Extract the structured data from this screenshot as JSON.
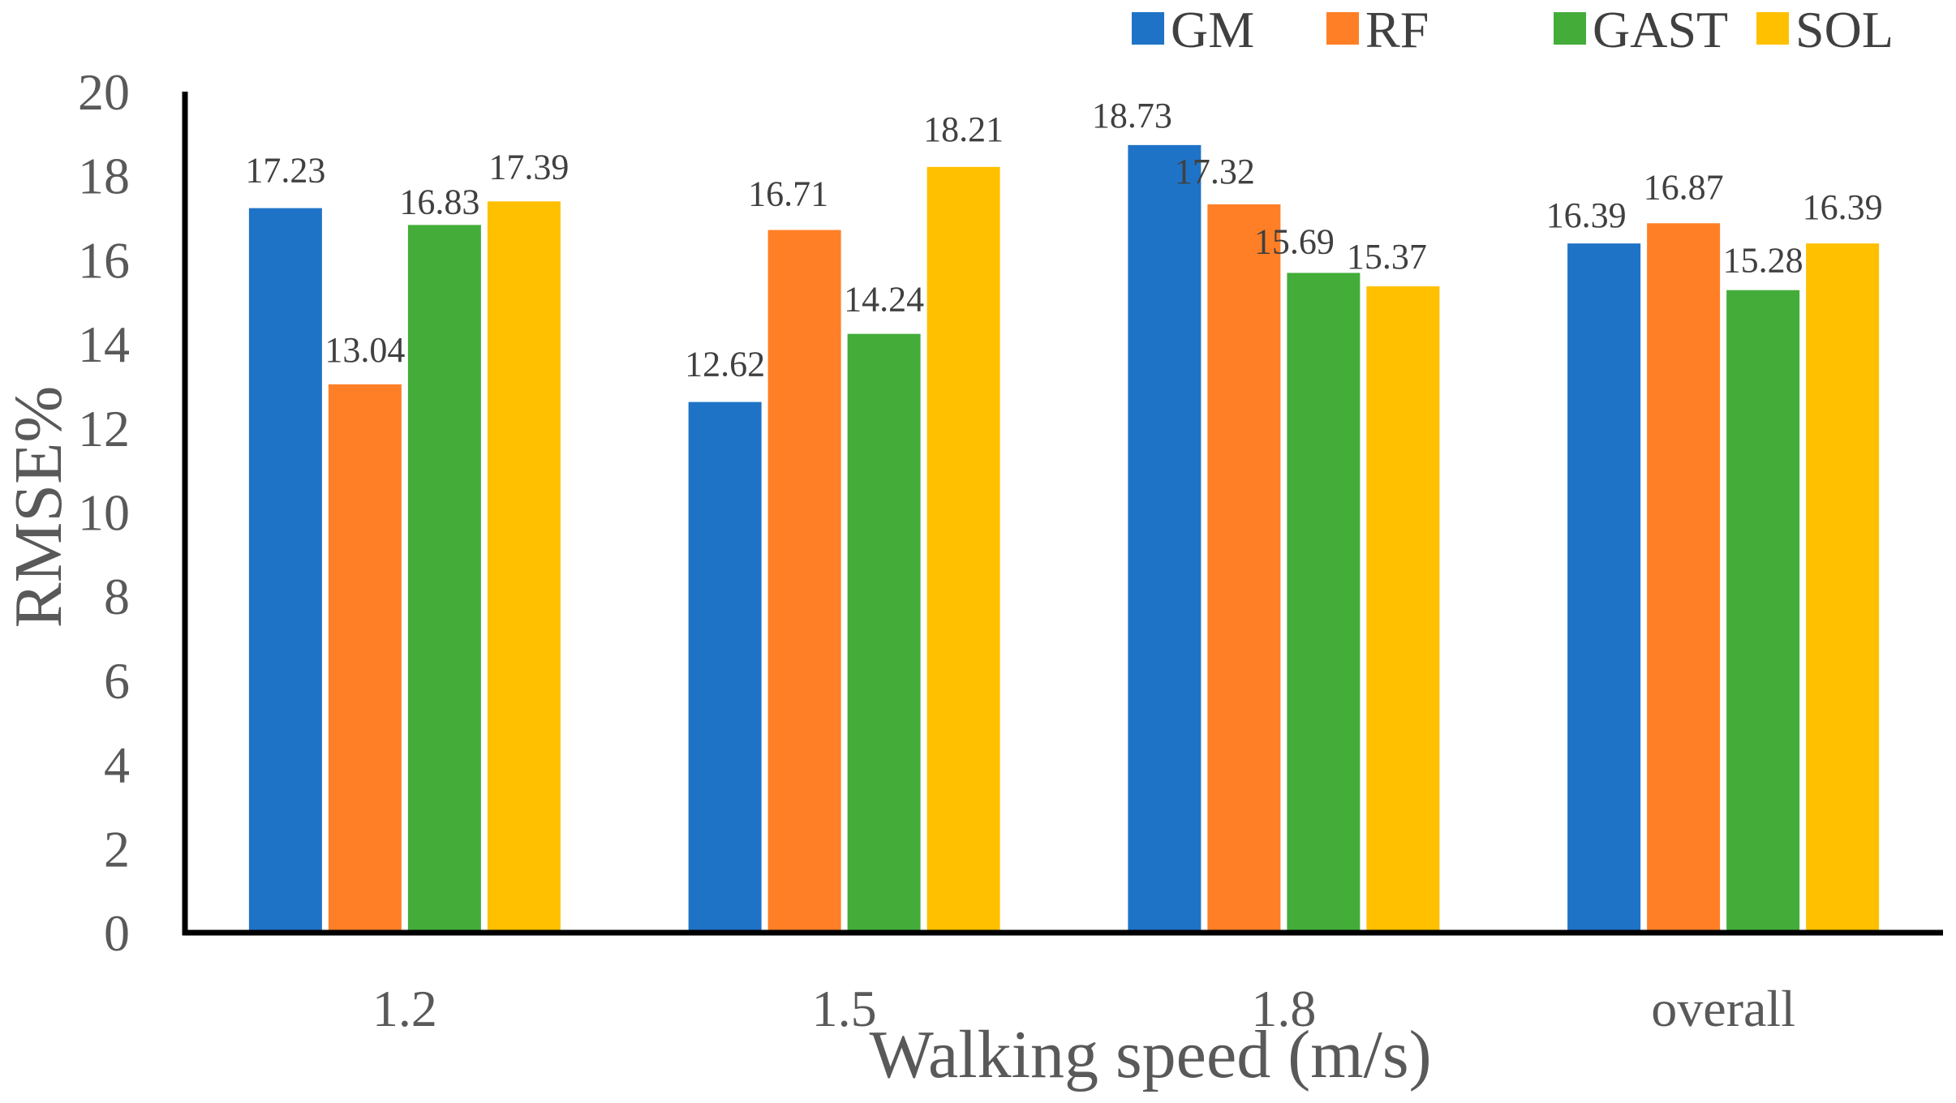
{
  "chart_data": {
    "type": "bar",
    "title": "",
    "xlabel": "Walking speed (m/s)",
    "ylabel": "RMSE%",
    "ylim": [
      0,
      20
    ],
    "yticks": [
      0,
      2,
      4,
      6,
      8,
      10,
      12,
      14,
      16,
      18,
      20
    ],
    "grid": false,
    "legend_position": "top-right",
    "categories": [
      "1.2",
      "1.5",
      "1.8",
      "overall"
    ],
    "series": [
      {
        "name": "GM",
        "color": "#1F73C6",
        "values": [
          17.23,
          12.62,
          18.73,
          16.39
        ],
        "labels": [
          "17.23",
          "12.62",
          "18.73",
          "16.39"
        ]
      },
      {
        "name": "RF",
        "color": "#FF7F27",
        "values": [
          13.04,
          16.71,
          17.32,
          16.87
        ],
        "labels": [
          "13.04",
          "16.71",
          "17.32",
          "16.87"
        ]
      },
      {
        "name": "GAST",
        "color": "#44AD3A",
        "values": [
          16.83,
          14.24,
          15.69,
          15.28
        ],
        "labels": [
          "16.83",
          "14.24",
          "15.69",
          "15.28"
        ]
      },
      {
        "name": "SOL",
        "color": "#FFC000",
        "values": [
          17.39,
          18.21,
          15.37,
          16.39
        ],
        "labels": [
          "17.39",
          "18.21",
          "15.37",
          "16.39"
        ]
      }
    ]
  }
}
